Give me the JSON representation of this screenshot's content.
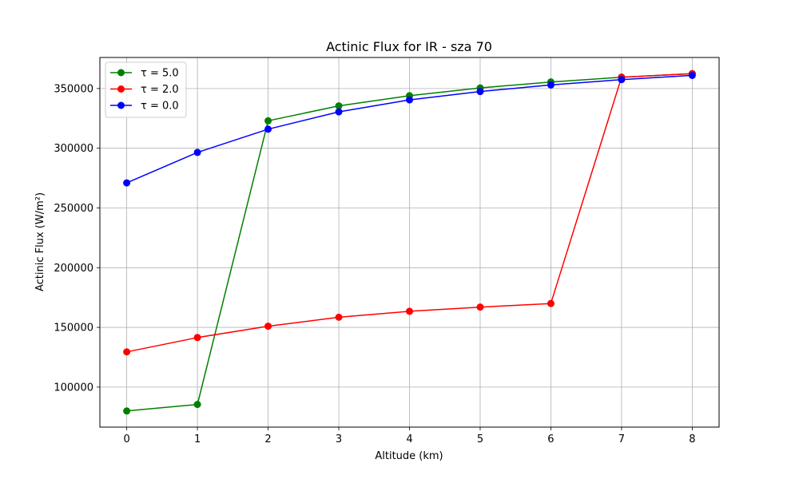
{
  "chart_data": {
    "type": "line",
    "title": "Actinic Flux for IR - sza 70",
    "xlabel": "Altitude (km)",
    "ylabel": "Actinic Flux (W/m²)",
    "x": [
      0,
      1,
      2,
      3,
      4,
      5,
      6,
      7,
      8
    ],
    "xticks": [
      "0",
      "1",
      "2",
      "3",
      "4",
      "5",
      "6",
      "7",
      "8"
    ],
    "yticks": [
      "100000",
      "150000",
      "200000",
      "250000",
      "300000",
      "350000"
    ],
    "ytick_values": [
      100000,
      150000,
      200000,
      250000,
      300000,
      350000
    ],
    "xlim": [
      -0.38,
      8.38
    ],
    "ylim": [
      66500,
      376000
    ],
    "grid": true,
    "legend_position": "upper-left",
    "series": [
      {
        "name": "τ = 5.0",
        "color": "#008000",
        "values": [
          80000,
          85500,
          323000,
          335500,
          344000,
          350500,
          355500,
          359500,
          362500
        ]
      },
      {
        "name": "τ = 2.0",
        "color": "#ff0000",
        "values": [
          129500,
          141500,
          151000,
          158500,
          163500,
          167000,
          170000,
          359500,
          362500
        ]
      },
      {
        "name": "τ = 0.0",
        "color": "#0000ff",
        "values": [
          271000,
          296500,
          316000,
          330500,
          340500,
          347500,
          353000,
          357500,
          361000
        ]
      }
    ]
  }
}
